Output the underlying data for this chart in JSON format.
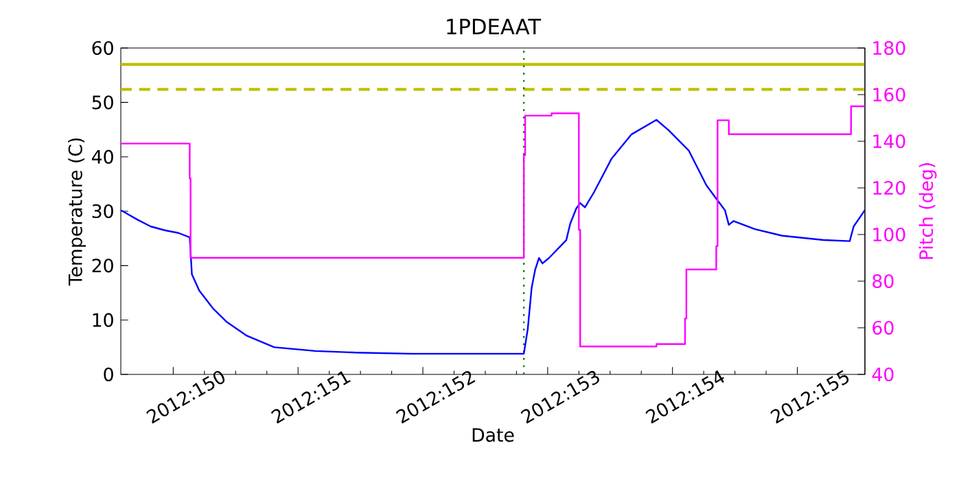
{
  "chart_data": {
    "type": "line",
    "title": "1PDEAAT",
    "xlabel": "Date",
    "ylabel": "Temperature (C)",
    "y2label": "Pitch (deg)",
    "xlim": [
      "2012-05-28T13:55",
      "2012-06-03T13:00"
    ],
    "xticks": [
      {
        "value": "2012-05-29",
        "label": "2012:150"
      },
      {
        "value": "2012-05-30",
        "label": "2012:151"
      },
      {
        "value": "2012-05-31",
        "label": "2012:152"
      },
      {
        "value": "2012-06-01",
        "label": "2012:153"
      },
      {
        "value": "2012-06-02",
        "label": "2012:154"
      },
      {
        "value": "2012-06-03",
        "label": "2012:155"
      }
    ],
    "ylim": [
      0,
      60
    ],
    "yticks": [
      0,
      10,
      20,
      30,
      40,
      50,
      60
    ],
    "y2lim": [
      40,
      180
    ],
    "y2ticks": [
      40,
      60,
      80,
      100,
      120,
      140,
      160,
      180
    ],
    "series": [
      {
        "axis": "y",
        "color": "#0000ff",
        "x": [
          "2012-05-28T13:55",
          "2012-05-28T17:00",
          "2012-05-28T19:40",
          "2012-05-28T22:20",
          "2012-05-29T01:00",
          "2012-05-29T03:10",
          "2012-05-29T03:35",
          "2012-05-29T05:00",
          "2012-05-29T07:40",
          "2012-05-29T10:20",
          "2012-05-29T14:10",
          "2012-05-29T19:25",
          "2012-05-30T03:20",
          "2012-05-30T11:15",
          "2012-05-30T21:50",
          "2012-05-31T19:25",
          "2012-05-31T20:10",
          "2012-05-31T20:55",
          "2012-05-31T21:35",
          "2012-05-31T22:20",
          "2012-05-31T23:00",
          "2012-06-01T00:15",
          "2012-06-01T03:35",
          "2012-06-01T04:20",
          "2012-06-01T05:30",
          "2012-06-01T06:15",
          "2012-06-01T07:10",
          "2012-06-01T08:55",
          "2012-06-01T12:15",
          "2012-06-01T16:05",
          "2012-06-01T20:55",
          "2012-06-01T23:15",
          "2012-06-02T03:10",
          "2012-06-02T06:30",
          "2012-06-02T08:25",
          "2012-06-02T10:05",
          "2012-06-02T10:50",
          "2012-06-02T11:45",
          "2012-06-02T15:50",
          "2012-06-02T21:05",
          "2012-06-03T05:00",
          "2012-06-03T10:05",
          "2012-06-03T10:50",
          "2012-06-03T13:00"
        ],
        "values": [
          30.2,
          28.5,
          27.2,
          26.5,
          26.0,
          25.2,
          18.4,
          15.4,
          12.1,
          9.6,
          7.1,
          5.0,
          4.3,
          4.0,
          3.8,
          3.8,
          8.3,
          15.9,
          19.2,
          21.4,
          20.4,
          21.4,
          24.7,
          27.7,
          30.5,
          31.5,
          30.7,
          33.5,
          39.6,
          44.1,
          46.8,
          44.9,
          41.1,
          34.8,
          32.3,
          30.2,
          27.5,
          28.2,
          26.7,
          25.5,
          24.7,
          24.5,
          27.2,
          30.2
        ]
      },
      {
        "type": "step",
        "axis": "y2",
        "color": "#ff00ff",
        "x": [
          "2012-05-28T13:55",
          "2012-05-29T03:10",
          "2012-05-29T03:20",
          "2012-05-31T19:25",
          "2012-05-31T19:40",
          "2012-06-01T00:45",
          "2012-06-01T06:00",
          "2012-06-01T06:15",
          "2012-06-01T20:55",
          "2012-06-02T02:25",
          "2012-06-02T02:40",
          "2012-06-02T08:25",
          "2012-06-02T08:40",
          "2012-06-02T10:50",
          "2012-06-03T10:20",
          "2012-06-03T13:00"
        ],
        "values": [
          139,
          124,
          90,
          134,
          151,
          152,
          102,
          52,
          53,
          64,
          85,
          95,
          149,
          143,
          155,
          155
        ]
      }
    ],
    "ref_lines": [
      {
        "axis": "y",
        "value": 57,
        "color": "#bfbf00",
        "line_style": "solid"
      },
      {
        "axis": "y",
        "value": 52.4,
        "color": "#bfbf00",
        "line_style": "dashed"
      },
      {
        "axis": "x",
        "value": "2012-05-31T19:25",
        "color": "#008000",
        "line_style": "dotted"
      }
    ]
  }
}
